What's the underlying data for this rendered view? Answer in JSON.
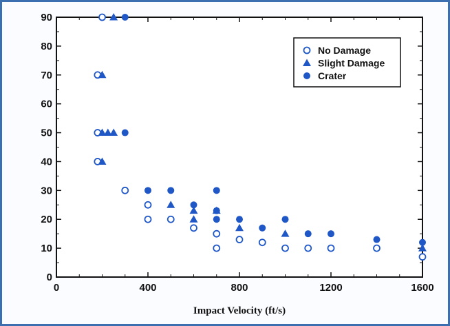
{
  "chart_data": {
    "type": "scatter",
    "xlabel": "Impact Velocity (ft/s)",
    "ylabel": "",
    "xlim": [
      0,
      1600
    ],
    "ylim": [
      0,
      90
    ],
    "xticks": [
      0,
      400,
      800,
      1200,
      1600
    ],
    "yticks": [
      0,
      10,
      20,
      30,
      40,
      50,
      60,
      70,
      80,
      90
    ],
    "grid": false,
    "legend_position": "top-right",
    "colors": {
      "series": "#1f57c7"
    },
    "series": [
      {
        "name": "No Damage",
        "marker": "circle-open",
        "points": [
          [
            180,
            40
          ],
          [
            180,
            50
          ],
          [
            180,
            70
          ],
          [
            200,
            90
          ],
          [
            300,
            30
          ],
          [
            400,
            20
          ],
          [
            400,
            25
          ],
          [
            500,
            20
          ],
          [
            600,
            17
          ],
          [
            700,
            10
          ],
          [
            700,
            15
          ],
          [
            800,
            13
          ],
          [
            900,
            12
          ],
          [
            1000,
            10
          ],
          [
            1100,
            10
          ],
          [
            1200,
            10
          ],
          [
            1400,
            10
          ],
          [
            1600,
            7
          ]
        ]
      },
      {
        "name": "Slight Damage",
        "marker": "triangle",
        "points": [
          [
            200,
            40
          ],
          [
            200,
            50
          ],
          [
            200,
            70
          ],
          [
            225,
            50
          ],
          [
            250,
            50
          ],
          [
            250,
            90
          ],
          [
            500,
            25
          ],
          [
            600,
            20
          ],
          [
            600,
            23
          ],
          [
            700,
            23
          ],
          [
            800,
            17
          ],
          [
            1000,
            15
          ],
          [
            1600,
            10
          ]
        ]
      },
      {
        "name": "Crater",
        "marker": "circle-filled",
        "points": [
          [
            300,
            90
          ],
          [
            300,
            50
          ],
          [
            400,
            30
          ],
          [
            500,
            30
          ],
          [
            600,
            25
          ],
          [
            700,
            30
          ],
          [
            700,
            23
          ],
          [
            700,
            20
          ],
          [
            800,
            20
          ],
          [
            900,
            17
          ],
          [
            1000,
            20
          ],
          [
            1100,
            15
          ],
          [
            1200,
            15
          ],
          [
            1400,
            13
          ],
          [
            1600,
            12
          ]
        ]
      }
    ]
  }
}
